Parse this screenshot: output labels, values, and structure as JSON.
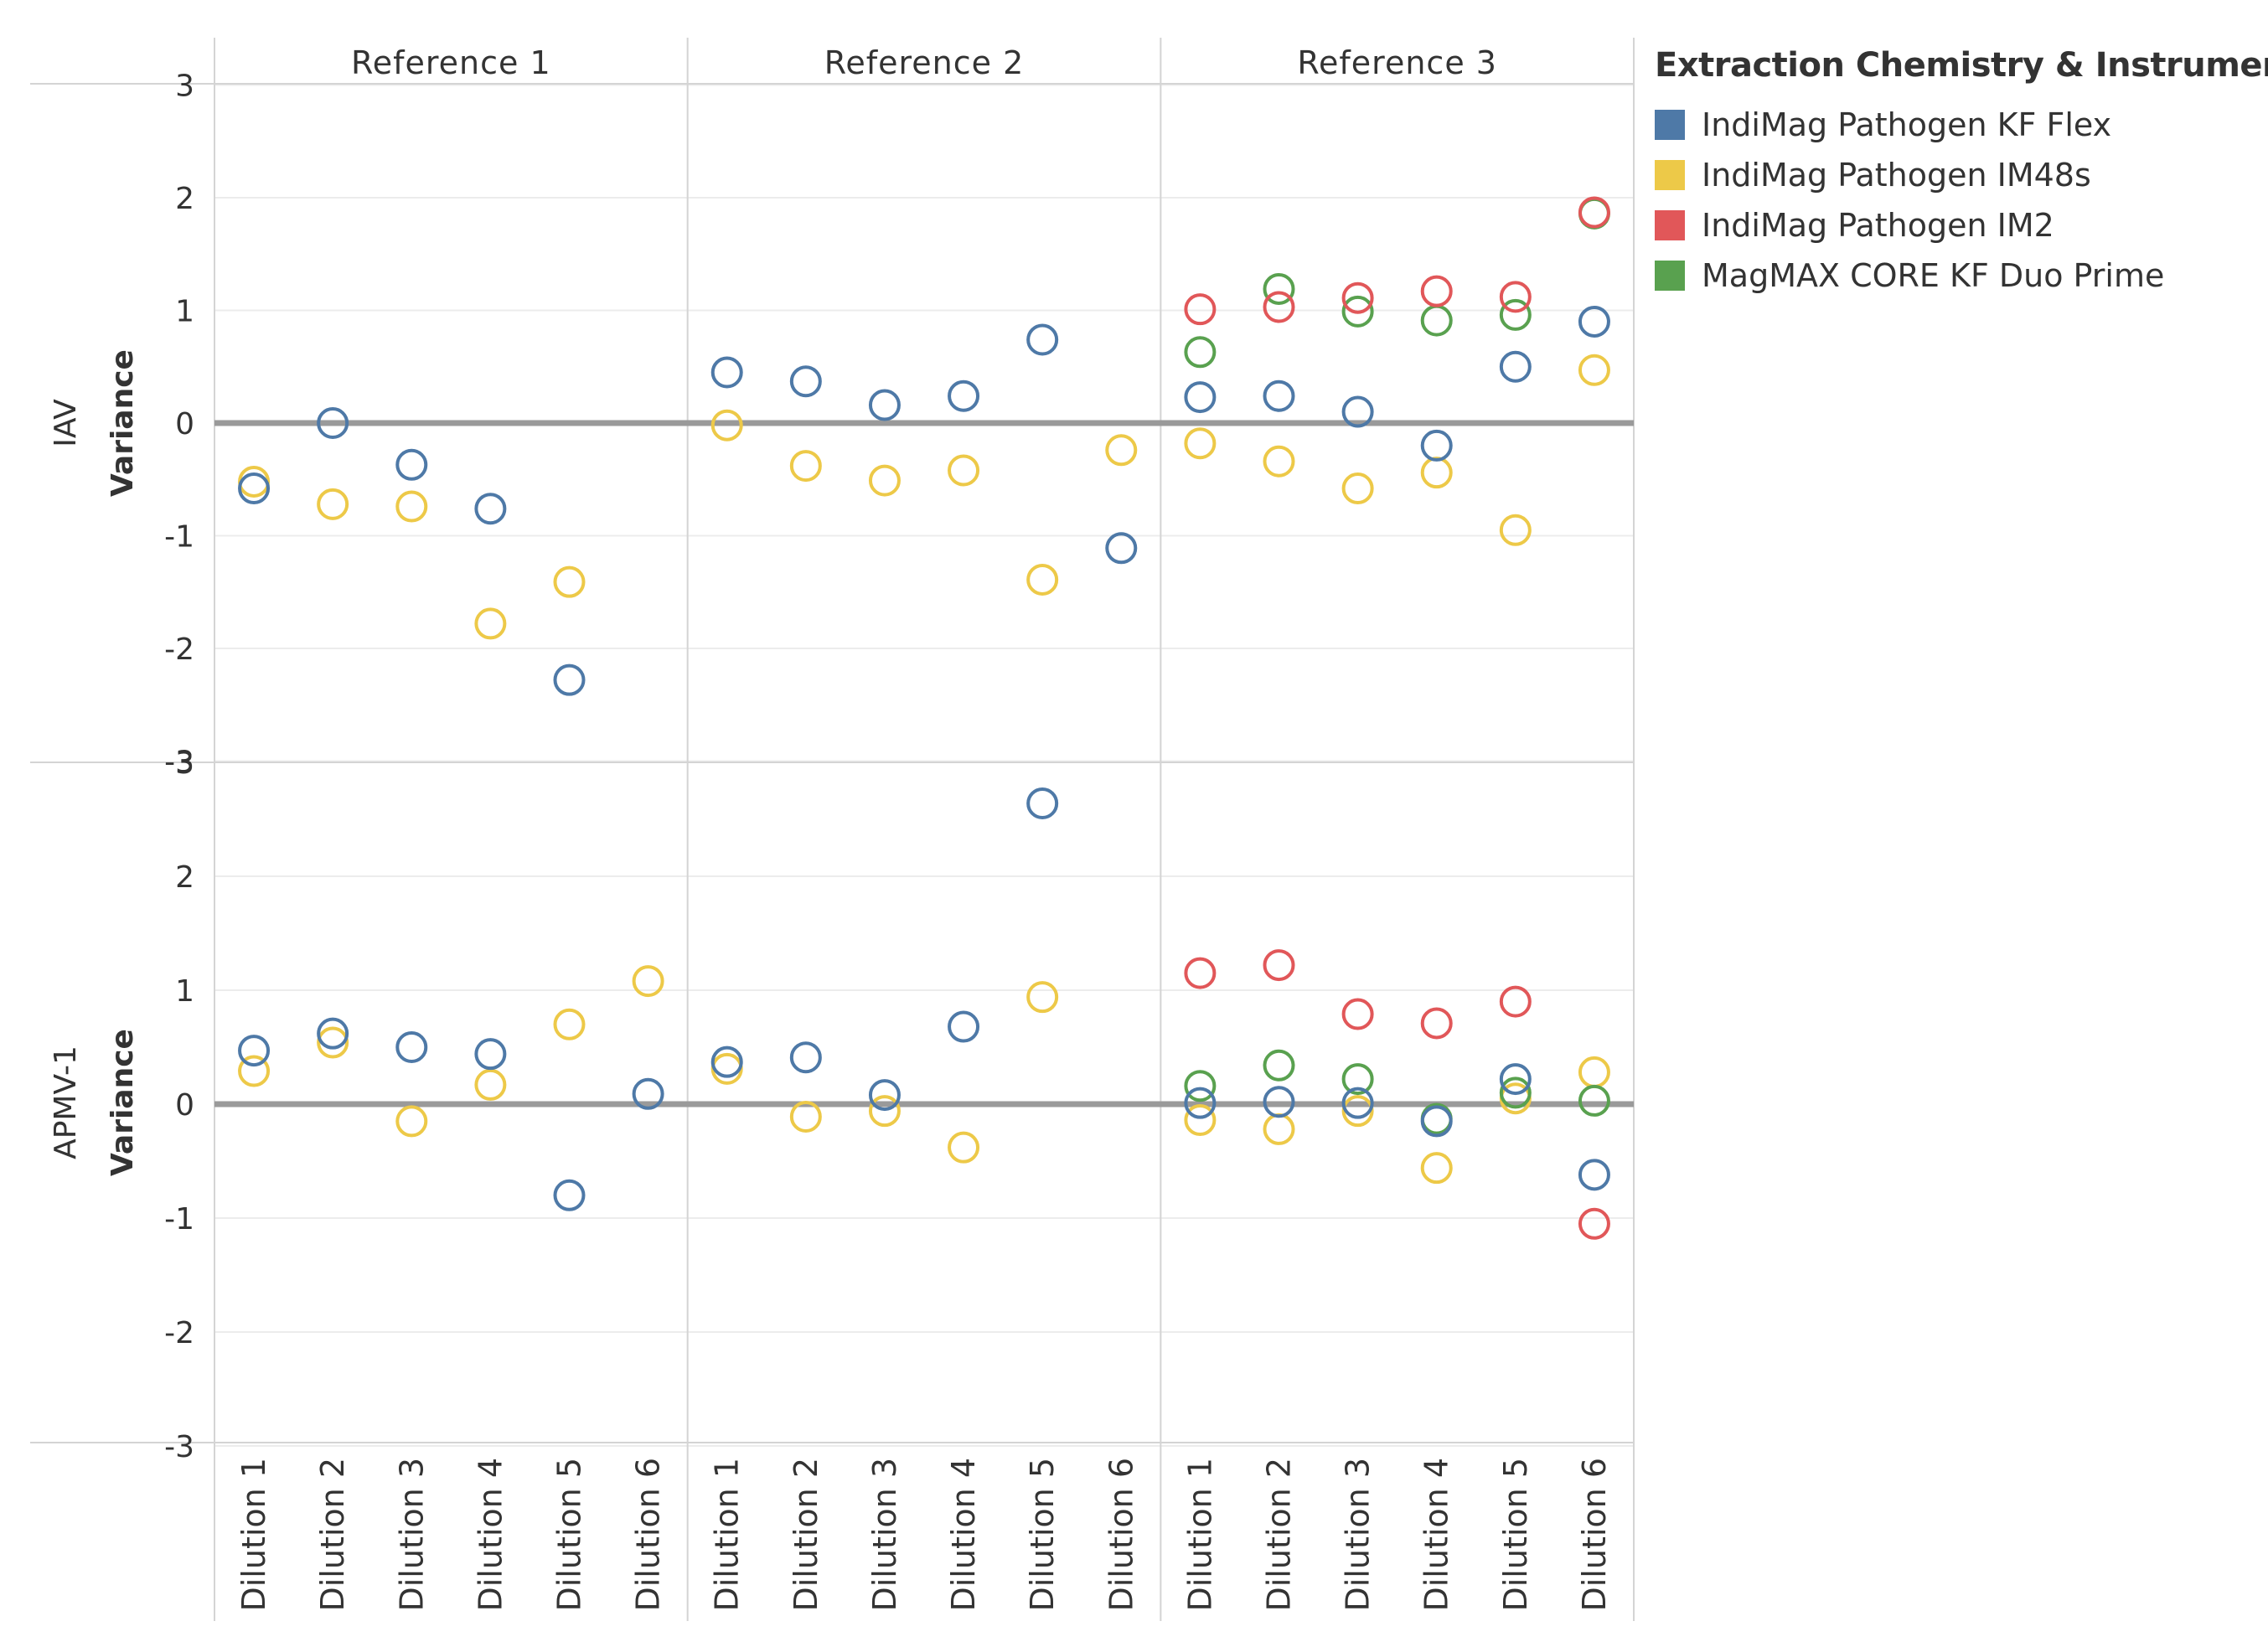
{
  "legend": {
    "title": "Extraction Chemistry & Instrument",
    "items": [
      {
        "label": "IndiMag Pathogen KF Flex",
        "color": "#4e79a7"
      },
      {
        "label": "IndiMag Pathogen IM48s",
        "color": "#edc948"
      },
      {
        "label": "IndiMag Pathogen IM2",
        "color": "#e15759"
      },
      {
        "label": "MagMAX CORE KF Duo Prime",
        "color": "#59a14f"
      }
    ]
  },
  "chart_data": {
    "type": "scatter",
    "column_headers": [
      "Reference 1",
      "Reference 2",
      "Reference 3"
    ],
    "x_categories": [
      "Dilution 1",
      "Dilution 2",
      "Dilution 3",
      "Dilution 4",
      "Dilution 5",
      "Dilution 6"
    ],
    "y_ticks": [
      3,
      2,
      1,
      0,
      -1,
      -2,
      -3
    ],
    "ylim": [
      -3.2,
      3.2
    ],
    "rows": [
      {
        "label_top": "IAV",
        "label_bottom": "Variance",
        "series": {
          "IndiMag Pathogen KF Flex": [
            [
              -0.58,
              0.0,
              -0.37,
              -0.76,
              -2.28,
              null
            ],
            [
              0.45,
              0.37,
              0.16,
              0.24,
              0.74,
              -1.11
            ],
            [
              0.23,
              0.24,
              0.1,
              -0.2,
              0.5,
              0.9
            ]
          ],
          "IndiMag Pathogen IM48s": [
            [
              -0.52,
              -0.72,
              -0.74,
              -1.78,
              -1.41,
              null
            ],
            [
              -0.02,
              -0.38,
              -0.51,
              -0.42,
              -1.39,
              -0.24
            ],
            [
              -0.18,
              -0.34,
              -0.58,
              -0.44,
              -0.95,
              0.47
            ]
          ],
          "IndiMag Pathogen IM2": [
            [
              null,
              null,
              null,
              null,
              null,
              null
            ],
            [
              null,
              null,
              null,
              null,
              null,
              null
            ],
            [
              1.01,
              1.03,
              1.11,
              1.17,
              1.12,
              1.87
            ]
          ],
          "MagMAX CORE KF Duo Prime": [
            [
              null,
              null,
              null,
              null,
              null,
              null
            ],
            [
              null,
              null,
              null,
              null,
              null,
              null
            ],
            [
              0.63,
              1.19,
              0.99,
              0.91,
              0.96,
              1.86
            ]
          ]
        }
      },
      {
        "label_top": "APMV-1",
        "label_bottom": "Variance",
        "series": {
          "IndiMag Pathogen KF Flex": [
            [
              0.47,
              0.62,
              0.5,
              0.44,
              -0.8,
              0.09
            ],
            [
              0.37,
              0.41,
              0.08,
              0.68,
              2.64,
              null
            ],
            [
              0.01,
              0.02,
              0.01,
              -0.15,
              0.22,
              -0.62
            ]
          ],
          "IndiMag Pathogen IM48s": [
            [
              0.29,
              0.54,
              -0.15,
              0.17,
              0.7,
              1.08
            ],
            [
              0.31,
              -0.11,
              -0.06,
              -0.38,
              0.94,
              null
            ],
            [
              -0.14,
              -0.22,
              -0.06,
              -0.56,
              0.05,
              0.28
            ]
          ],
          "IndiMag Pathogen IM2": [
            [
              null,
              null,
              null,
              null,
              null,
              null
            ],
            [
              null,
              null,
              null,
              null,
              null,
              null
            ],
            [
              1.15,
              1.22,
              0.79,
              0.71,
              0.9,
              -1.05
            ]
          ],
          "MagMAX CORE KF Duo Prime": [
            [
              null,
              null,
              null,
              null,
              null,
              null
            ],
            [
              null,
              null,
              null,
              null,
              null,
              null
            ],
            [
              0.16,
              0.34,
              0.22,
              -0.13,
              0.1,
              0.03
            ]
          ]
        }
      }
    ]
  }
}
